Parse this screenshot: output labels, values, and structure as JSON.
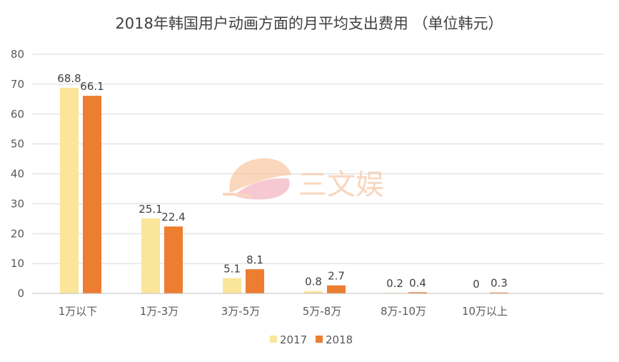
{
  "chart_data": {
    "type": "bar",
    "title": "2018年韩国用户动画方面的月平均支出费用 （单位韩元）",
    "xlabel": "",
    "ylabel": "",
    "categories": [
      "1万以下",
      "1万-3万",
      "3万-5万",
      "5万-8万",
      "8万-10万",
      "10万以上"
    ],
    "series": [
      {
        "name": "2017",
        "color": "#FBE59A",
        "values": [
          68.8,
          25.1,
          5.1,
          0.8,
          0.2,
          0
        ]
      },
      {
        "name": "2018",
        "color": "#ED7D31",
        "values": [
          66.1,
          22.4,
          8.1,
          2.7,
          0.4,
          0.3
        ]
      }
    ],
    "ylim": [
      0,
      80
    ],
    "yticks": [
      0,
      10,
      20,
      30,
      40,
      50,
      60,
      70,
      80
    ],
    "grid": true,
    "legend": "bottom",
    "data_labels": true
  },
  "watermark": {
    "text": "三文娱",
    "icon": "fan-leaf-logo-icon"
  }
}
